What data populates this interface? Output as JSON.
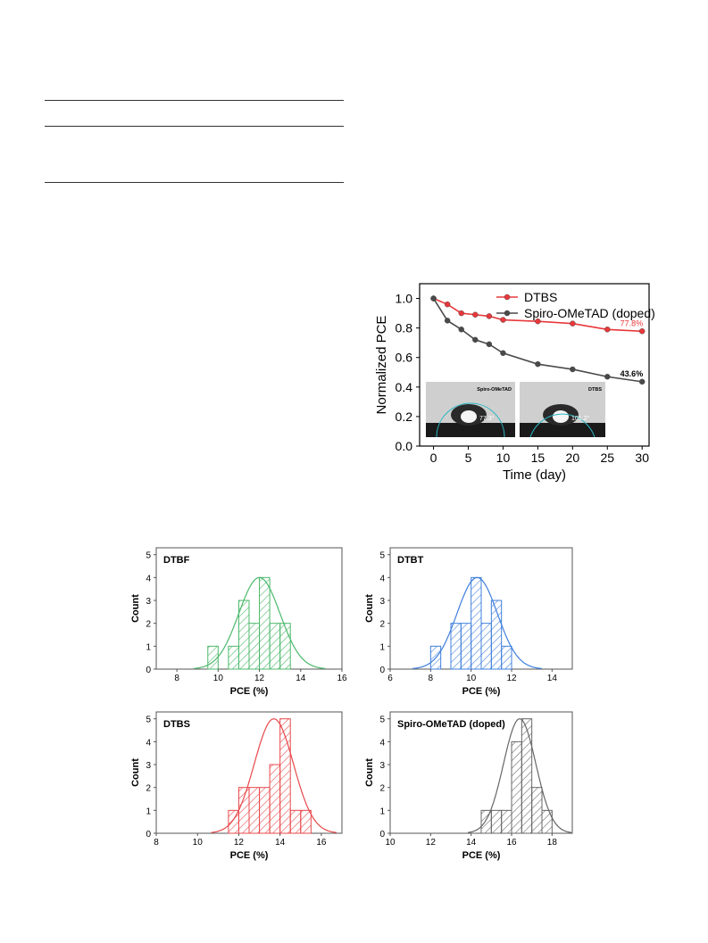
{
  "stability_chart": {
    "type": "line",
    "ylabel": "Normalized PCE",
    "xlabel": "Time (day)",
    "xlim": [
      -2,
      31
    ],
    "ylim": [
      0.0,
      1.1
    ],
    "x_ticks": [
      0,
      5,
      10,
      15,
      20,
      25,
      30
    ],
    "y_ticks": [
      "0.0",
      "0.2",
      "0.4",
      "0.6",
      "0.8",
      "1.0"
    ],
    "legend_placement": "top-right",
    "series": [
      {
        "name": "DTBS",
        "color": "#e8383b",
        "x": [
          0,
          2,
          4,
          6,
          8,
          10,
          15,
          20,
          25,
          30
        ],
        "y": [
          1.0,
          0.96,
          0.9,
          0.89,
          0.88,
          0.855,
          0.845,
          0.83,
          0.79,
          0.778
        ],
        "end_label": "77.8%"
      },
      {
        "name": "Spiro-OMeTAD (doped)",
        "color": "#4a4a4a",
        "x": [
          0,
          2,
          4,
          6,
          8,
          10,
          15,
          20,
          25,
          30
        ],
        "y": [
          1.0,
          0.85,
          0.79,
          0.72,
          0.69,
          0.63,
          0.555,
          0.52,
          0.47,
          0.436
        ],
        "end_label": "43.6%"
      }
    ],
    "insets": [
      {
        "label": "Spiro-OMeTAD",
        "angle": "77.3°"
      },
      {
        "label": "DTBS",
        "angle": "101.2°"
      }
    ]
  },
  "chart_data": [
    {
      "type": "bar",
      "title": "DTBF",
      "xlabel": "PCE (%)",
      "ylabel": "Count",
      "color": "#4cb86b",
      "xlim": [
        7,
        16
      ],
      "ylim": [
        0,
        5
      ],
      "x_ticks": [
        8,
        10,
        12,
        14,
        16
      ],
      "y_ticks": [
        0,
        1,
        2,
        3,
        4,
        5
      ],
      "bin_width": 0.5,
      "bin_starts": [
        9.5,
        10.5,
        11.0,
        11.5,
        12.0,
        12.5,
        13.0
      ],
      "values": [
        1,
        1,
        3,
        2,
        4,
        2,
        2
      ],
      "fit": {
        "mean": 12.0,
        "sd": 1.0,
        "peak": 4.0
      }
    },
    {
      "type": "bar",
      "title": "DTBT",
      "xlabel": "PCE (%)",
      "ylabel": "Count",
      "color": "#3f7fdc",
      "xlim": [
        6,
        15
      ],
      "ylim": [
        0,
        5
      ],
      "x_ticks": [
        6,
        8,
        10,
        12,
        14
      ],
      "y_ticks": [
        0,
        1,
        2,
        3,
        4,
        5
      ],
      "bin_width": 0.5,
      "bin_starts": [
        8.0,
        9.0,
        9.5,
        10.0,
        10.5,
        11.0,
        11.5
      ],
      "values": [
        1,
        2,
        2,
        4,
        2,
        3,
        1
      ],
      "fit": {
        "mean": 10.3,
        "sd": 1.0,
        "peak": 4.0
      }
    },
    {
      "type": "bar",
      "title": "DTBS",
      "xlabel": "PCE (%)",
      "ylabel": "Count",
      "color": "#e8484b",
      "xlim": [
        8,
        17
      ],
      "ylim": [
        0,
        5
      ],
      "x_ticks": [
        8,
        10,
        12,
        14,
        16
      ],
      "y_ticks": [
        0,
        1,
        2,
        3,
        4,
        5
      ],
      "bin_width": 0.5,
      "bin_starts": [
        11.5,
        12.0,
        12.5,
        13.0,
        13.5,
        14.0,
        14.5,
        15.0
      ],
      "values": [
        1,
        2,
        2,
        2,
        3,
        5,
        1,
        1
      ],
      "fit": {
        "mean": 13.7,
        "sd": 0.95,
        "peak": 5.0
      }
    },
    {
      "type": "bar",
      "title": "Spiro-OMeTAD (doped)",
      "xlabel": "PCE (%)",
      "ylabel": "Count",
      "color": "#666666",
      "xlim": [
        10,
        19
      ],
      "ylim": [
        0,
        5
      ],
      "x_ticks": [
        10,
        12,
        14,
        16,
        18
      ],
      "y_ticks": [
        0,
        1,
        2,
        3,
        4,
        5
      ],
      "bin_width": 0.5,
      "bin_starts": [
        14.5,
        15.0,
        15.5,
        16.0,
        16.5,
        17.0,
        17.5
      ],
      "values": [
        1,
        1,
        1,
        4,
        5,
        2,
        1
      ],
      "fit": {
        "mean": 16.4,
        "sd": 0.8,
        "peak": 5.0
      }
    }
  ]
}
